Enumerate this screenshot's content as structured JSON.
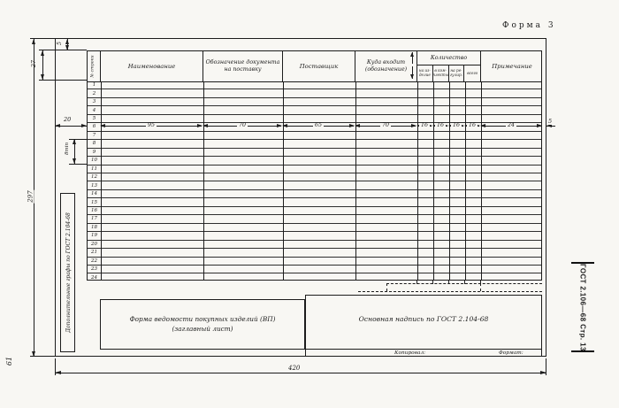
{
  "page": {
    "form_label": "Форма 3",
    "side_ref": "ГОСТ 2.106—68 Стр. 13",
    "page_number": "61"
  },
  "dims": {
    "top_gap": "5",
    "header_height": "27",
    "left_margin": "20",
    "min_row_height": "8min",
    "sheet_height": "297",
    "sheet_width": "420",
    "right_gap": "5",
    "col_widths": [
      "95",
      "70",
      "65",
      "70",
      "16",
      "16",
      "16",
      "16",
      "24"
    ]
  },
  "table": {
    "header": {
      "line_no": "№ строки",
      "name": "Наименование",
      "doc_line1": "Обозначение документа",
      "doc_line2": "на поставку",
      "supplier": "Поставщик",
      "where_line1": "Куда входит",
      "where_line2": "(обозначение)",
      "qty_group": "Количество",
      "qty_sub": [
        {
          "l1": "на из-",
          "l2": "делие"
        },
        {
          "l1": "в ком-",
          "l2": "плекты"
        },
        {
          "l1": "на ре-",
          "l2": "гулир."
        },
        {
          "l1": "всего",
          "l2": ""
        }
      ],
      "note": "Примечание"
    },
    "row_numbers": [
      "1",
      "2",
      "3",
      "4",
      "5",
      "6",
      "7",
      "8",
      "9",
      "10",
      "11",
      "12",
      "13",
      "14",
      "15",
      "16",
      "17",
      "18",
      "19",
      "20",
      "21",
      "22",
      "23",
      "24"
    ]
  },
  "footer": {
    "extra_columns_label": "Дополнительные графы по ГОСТ 2.104-68",
    "caption_line1": "Форма ведомости покупных изделий (ВП)",
    "caption_line2": "(заглавный лист)",
    "title_block_label": "Основная надпись по ГОСТ 2.104-68",
    "copied_label": "Копировал:",
    "format_label": "Формат:"
  }
}
